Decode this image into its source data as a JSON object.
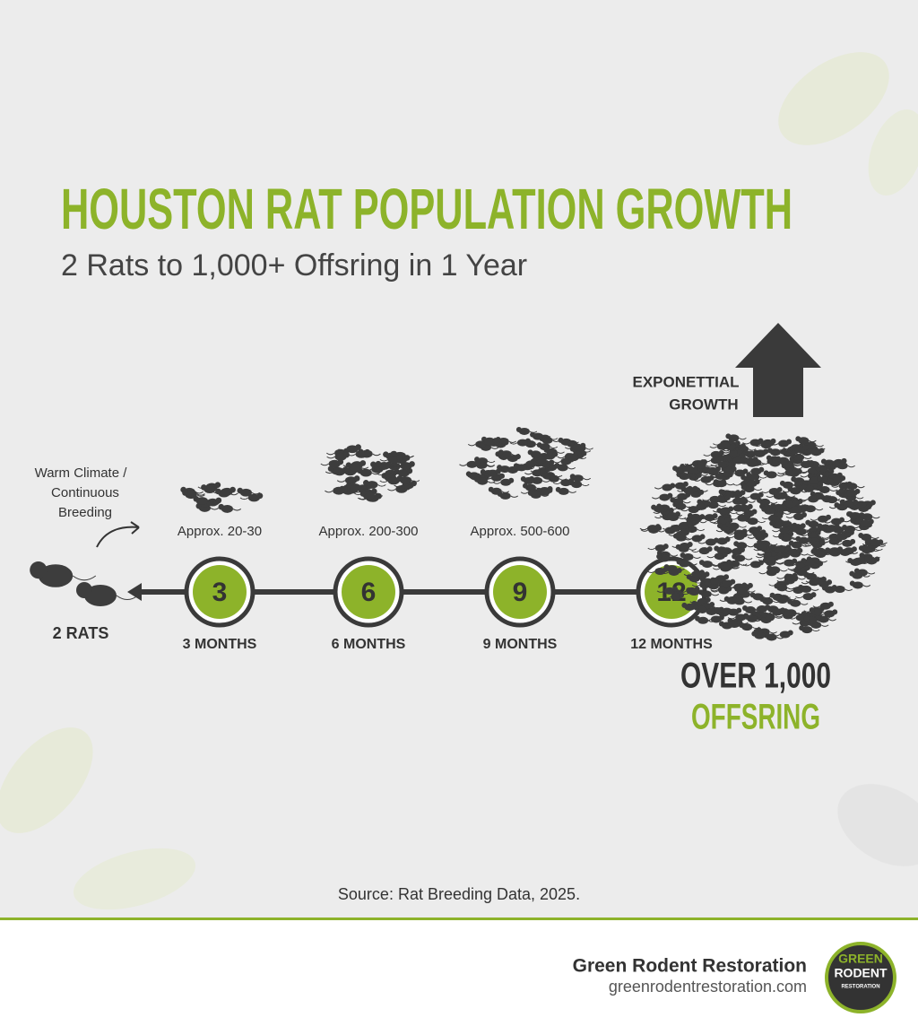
{
  "header": {
    "title": "HOUSTON RAT POPULATION GROWTH",
    "subtitle": "2 Rats to 1,000+ Offsring in 1 Year"
  },
  "start": {
    "note": [
      "Warm Climate /",
      "Continuous",
      "Breeding"
    ],
    "label": "2 RATS"
  },
  "stages": [
    {
      "number": "3",
      "label": "3 MONTHS",
      "approx": "Approx. 20-30"
    },
    {
      "number": "6",
      "label": "6 MONTHS",
      "approx": "Approx. 200-300"
    },
    {
      "number": "9",
      "label": "9 MONTHS",
      "approx": "Approx. 500-600"
    },
    {
      "number": "12",
      "label": "12 MONTHS"
    }
  ],
  "growth": {
    "arrow_label": [
      "EXPONETTIAL",
      "GROWTH"
    ],
    "result": [
      "OVER 1,000",
      "OFFSRING"
    ]
  },
  "source": "Source: Rat Breeding Data, 2025.",
  "footer": {
    "company": "Green Rodent Restoration",
    "url": "greenrodentrestoration.com",
    "logo": [
      "GREEN",
      "RODENT",
      "RESTORATION"
    ]
  }
}
